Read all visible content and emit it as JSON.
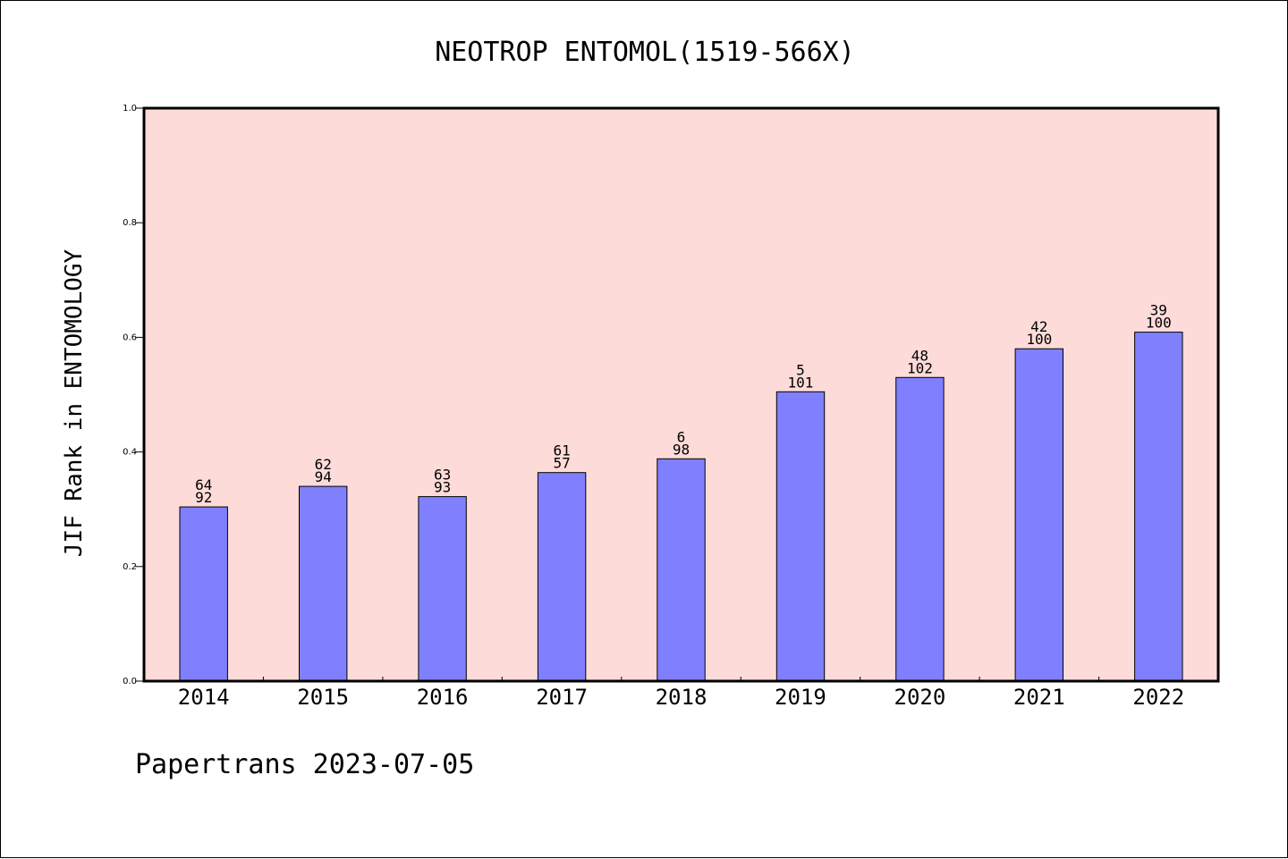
{
  "chart_data": {
    "type": "bar",
    "title": "NEOTROP ENTOMOL(1519-566X)",
    "xlabel": "",
    "ylabel": "JIF Rank in ENTOMOLOGY",
    "ylim": [
      0.0,
      1.0
    ],
    "yticks": [
      "0.0",
      "0.2",
      "0.4",
      "0.6",
      "0.8",
      "1.0"
    ],
    "grid": false,
    "categories": [
      "2014",
      "2015",
      "2016",
      "2017",
      "2018",
      "2019",
      "2020",
      "2021",
      "2022"
    ],
    "values": [
      0.304,
      0.34,
      0.322,
      0.364,
      0.388,
      0.505,
      0.53,
      0.58,
      0.609
    ],
    "labels_top": [
      "64",
      "62",
      "63",
      "61",
      "6",
      "5",
      "48",
      "42",
      "39"
    ],
    "labels_bottom": [
      "92",
      "94",
      "93",
      "57",
      "98",
      "101",
      "102",
      "100",
      "100"
    ],
    "colors": {
      "plot_background": "#fddbd8",
      "bar_fill": "#8080ff",
      "bar_edge": "#000000"
    }
  },
  "footer": {
    "text": "Papertrans 2023-07-05"
  }
}
